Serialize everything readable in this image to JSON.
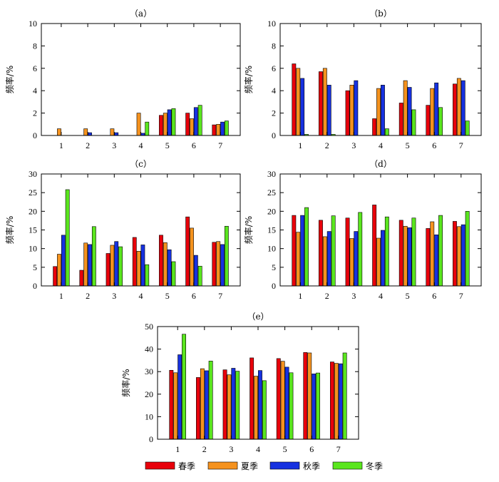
{
  "chart_data": [
    {
      "type": "bar",
      "panel_label": "（a）",
      "ylabel": "频率/%",
      "categories": [
        "1",
        "2",
        "3",
        "4",
        "5",
        "6",
        "7"
      ],
      "ylim": [
        0,
        10
      ],
      "yticks": [
        0,
        2,
        4,
        6,
        8,
        10
      ],
      "series": [
        {
          "name": "春季",
          "values": [
            0,
            0,
            0,
            0,
            1.8,
            2.0,
            0.95
          ]
        },
        {
          "name": "夏季",
          "values": [
            0.6,
            0.6,
            0.6,
            2.0,
            2.0,
            1.5,
            1.0
          ]
        },
        {
          "name": "秋季",
          "values": [
            0,
            0.25,
            0.25,
            0.2,
            2.3,
            2.5,
            1.2
          ]
        },
        {
          "name": "冬季",
          "values": [
            0,
            0,
            0,
            1.2,
            2.4,
            2.7,
            1.3
          ]
        }
      ]
    },
    {
      "type": "bar",
      "panel_label": "（b）",
      "ylabel": "频率/%",
      "categories": [
        "1",
        "2",
        "3",
        "4",
        "5",
        "6",
        "7"
      ],
      "ylim": [
        0,
        10
      ],
      "yticks": [
        0,
        2,
        4,
        6,
        8,
        10
      ],
      "series": [
        {
          "name": "春季",
          "values": [
            6.4,
            5.7,
            4.0,
            1.5,
            2.9,
            2.7,
            4.6
          ]
        },
        {
          "name": "夏季",
          "values": [
            6.0,
            6.0,
            4.5,
            4.2,
            4.9,
            4.2,
            5.1
          ]
        },
        {
          "name": "秋季",
          "values": [
            5.1,
            4.5,
            4.9,
            4.5,
            4.3,
            4.7,
            4.9
          ]
        },
        {
          "name": "冬季",
          "values": [
            0.1,
            0.1,
            0,
            0.6,
            2.3,
            2.5,
            1.3
          ]
        }
      ]
    },
    {
      "type": "bar",
      "panel_label": "（c）",
      "ylabel": "频率/%",
      "categories": [
        "1",
        "2",
        "3",
        "4",
        "5",
        "6",
        "7"
      ],
      "ylim": [
        0,
        30
      ],
      "yticks": [
        0,
        5,
        10,
        15,
        20,
        25,
        30
      ],
      "series": [
        {
          "name": "春季",
          "values": [
            5.2,
            4.2,
            8.7,
            13.0,
            13.6,
            18.5,
            11.7
          ]
        },
        {
          "name": "夏季",
          "values": [
            8.5,
            11.5,
            10.9,
            9.3,
            11.6,
            15.5,
            11.9
          ]
        },
        {
          "name": "秋季",
          "values": [
            13.6,
            11.1,
            11.9,
            11.0,
            9.7,
            8.2,
            11.1
          ]
        },
        {
          "name": "冬季",
          "values": [
            25.8,
            15.9,
            10.5,
            5.7,
            6.5,
            5.3,
            16.0
          ]
        }
      ]
    },
    {
      "type": "bar",
      "panel_label": "（d）",
      "ylabel": "频率/%",
      "categories": [
        "1",
        "2",
        "3",
        "4",
        "5",
        "6",
        "7"
      ],
      "ylim": [
        0,
        30
      ],
      "yticks": [
        0,
        5,
        10,
        15,
        20,
        25,
        30
      ],
      "series": [
        {
          "name": "春季",
          "values": [
            18.9,
            17.6,
            18.2,
            21.7,
            17.6,
            15.4,
            17.3
          ]
        },
        {
          "name": "夏季",
          "values": [
            14.4,
            13.2,
            12.7,
            12.8,
            16.0,
            17.2,
            15.9
          ]
        },
        {
          "name": "秋季",
          "values": [
            18.9,
            14.6,
            14.6,
            14.9,
            15.6,
            13.7,
            16.4
          ]
        },
        {
          "name": "冬季",
          "values": [
            21.0,
            18.8,
            19.7,
            18.5,
            18.2,
            18.9,
            20.0
          ]
        }
      ]
    },
    {
      "type": "bar",
      "panel_label": "（e）",
      "ylabel": "频率/%",
      "categories": [
        "1",
        "2",
        "3",
        "4",
        "5",
        "6",
        "7"
      ],
      "ylim": [
        0,
        50
      ],
      "yticks": [
        0,
        10,
        20,
        30,
        40,
        50
      ],
      "series": [
        {
          "name": "春季",
          "values": [
            30.6,
            27.4,
            30.8,
            36.1,
            35.8,
            38.5,
            34.3
          ]
        },
        {
          "name": "夏季",
          "values": [
            29.5,
            31.3,
            28.6,
            28.0,
            34.6,
            38.3,
            33.7
          ]
        },
        {
          "name": "秋季",
          "values": [
            37.5,
            30.4,
            31.5,
            30.5,
            32.0,
            29.0,
            33.5
          ]
        },
        {
          "name": "冬季",
          "values": [
            46.6,
            34.7,
            30.2,
            26.0,
            29.5,
            29.4,
            38.3
          ]
        }
      ]
    }
  ],
  "legend": {
    "placement": "bottom-center",
    "items": [
      {
        "name": "春季",
        "color": "#e8000b"
      },
      {
        "name": "夏季",
        "color": "#f5921e"
      },
      {
        "name": "秋季",
        "color": "#1631e0"
      },
      {
        "name": "冬季",
        "color": "#5ae61e"
      }
    ]
  },
  "colors": [
    "#e8000b",
    "#f5921e",
    "#1631e0",
    "#5ae61e"
  ]
}
